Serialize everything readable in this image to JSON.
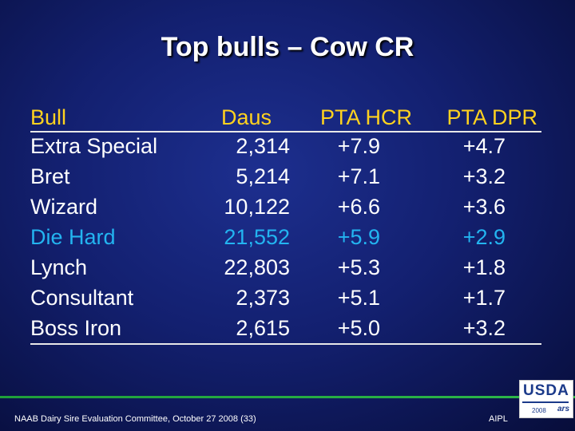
{
  "title": "Top bulls – Cow CR",
  "table": {
    "headers": [
      "Bull",
      "Daus",
      "PTA HCR",
      "PTA DPR"
    ],
    "rows": [
      {
        "bull": "Extra Special",
        "daus": "2,314",
        "hcr": "+7.9",
        "dpr": "+4.7"
      },
      {
        "bull": "Bret",
        "daus": "5,214",
        "hcr": "+7.1",
        "dpr": "+3.2"
      },
      {
        "bull": "Wizard",
        "daus": "10,122",
        "hcr": "+6.6",
        "dpr": "+3.6"
      },
      {
        "bull": "Die Hard",
        "daus": "21,552",
        "hcr": "+5.9",
        "dpr": "+2.9"
      },
      {
        "bull": "Lynch",
        "daus": "22,803",
        "hcr": "+5.3",
        "dpr": "+1.8"
      },
      {
        "bull": "Consultant",
        "daus": "2,373",
        "hcr": "+5.1",
        "dpr": "+1.7"
      },
      {
        "bull": "Boss Iron",
        "daus": "2,615",
        "hcr": "+5.0",
        "dpr": "+3.2"
      }
    ]
  },
  "footer": {
    "left": "NAAB Dairy Sire Evaluation Committee, October 27 2008 (33)",
    "right": "AIPL",
    "logo_text": "USDA",
    "logo_sub": "ars",
    "year": "2008"
  },
  "colors": {
    "header": "#ffd21f",
    "highlight": "#23b4f0",
    "text": "#ffffff",
    "background": "#132070"
  }
}
